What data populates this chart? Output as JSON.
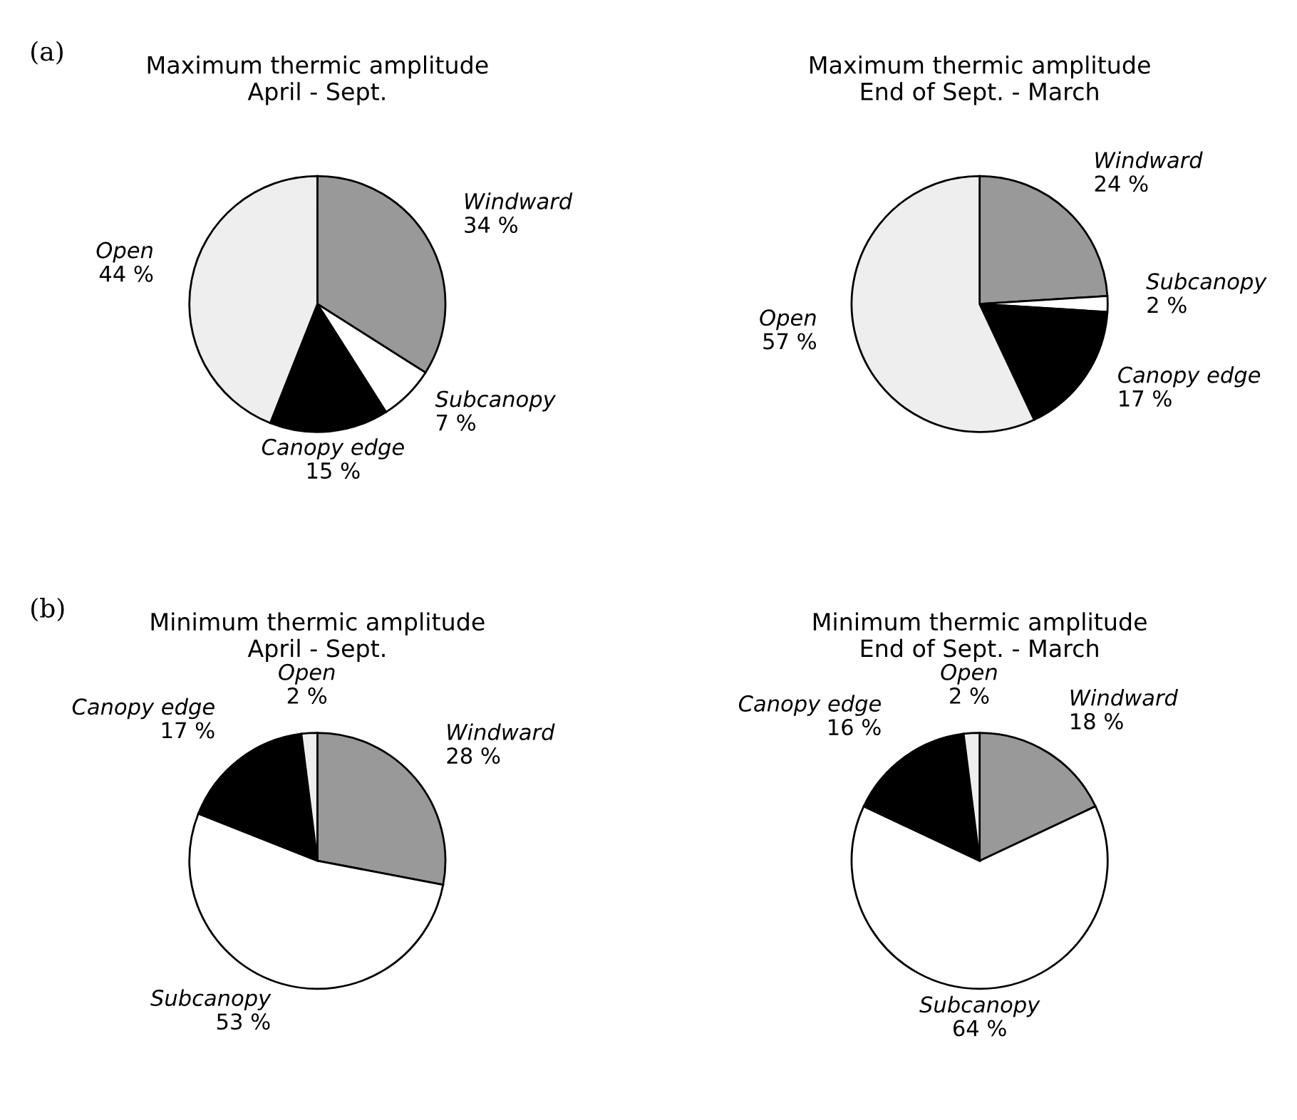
{
  "chart_data": [
    {
      "type": "pie",
      "title": "Maximum thermic amplitude\nApril - Sept.",
      "annotations": [
        "(a)"
      ],
      "categories": [
        "Windward",
        "Subcanopy",
        "Canopy edge",
        "Open"
      ],
      "values": [
        34,
        7,
        15,
        44
      ],
      "value_labels": [
        "34 %",
        "7 %",
        "15 %",
        "44 %"
      ],
      "colors": [
        "#999999",
        "#ffffff",
        "#000000",
        "#eeeeee"
      ]
    },
    {
      "type": "pie",
      "title": "Maximum thermic amplitude\nEnd of Sept. - March",
      "categories": [
        "Windward",
        "Subcanopy",
        "Canopy edge",
        "Open"
      ],
      "values": [
        24,
        2,
        17,
        57
      ],
      "value_labels": [
        "24 %",
        "2 %",
        "17 %",
        "57 %"
      ],
      "colors": [
        "#999999",
        "#ffffff",
        "#000000",
        "#eeeeee"
      ]
    },
    {
      "type": "pie",
      "title": "Minimum thermic amplitude\nApril - Sept.",
      "annotations": [
        "(b)"
      ],
      "categories": [
        "Windward",
        "Subcanopy",
        "Canopy edge",
        "Open"
      ],
      "values": [
        28,
        53,
        17,
        2
      ],
      "value_labels": [
        "28 %",
        "53 %",
        "17 %",
        "2 %"
      ],
      "colors": [
        "#999999",
        "#ffffff",
        "#000000",
        "#eeeeee"
      ]
    },
    {
      "type": "pie",
      "title": "Minimum thermic amplitude\nEnd of Sept. - March",
      "categories": [
        "Windward",
        "Subcanopy",
        "Canopy edge",
        "Open"
      ],
      "values": [
        18,
        64,
        16,
        2
      ],
      "value_labels": [
        "18 %",
        "64 %",
        "16 %",
        "2 %"
      ],
      "colors": [
        "#999999",
        "#ffffff",
        "#000000",
        "#eeeeee"
      ]
    }
  ]
}
